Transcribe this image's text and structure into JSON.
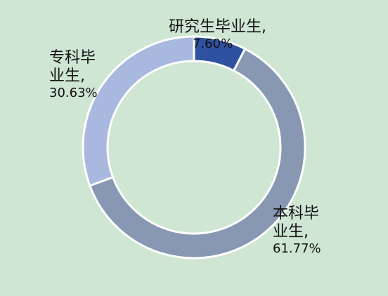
{
  "chart_data": {
    "type": "pie",
    "donut": true,
    "slices": [
      {
        "name": "研究生毕业生",
        "value": 7.6,
        "label_line1": "研究生毕业生,",
        "label_pct": "7.60%",
        "color": "#2f52a0"
      },
      {
        "name": "本科毕业生",
        "value": 61.77,
        "label_line1": "本科毕",
        "label_line2": "业生,",
        "label_pct": "61.77%",
        "color": "#8898b3"
      },
      {
        "name": "专科毕业生",
        "value": 30.63,
        "label_line1": "专科毕",
        "label_line2": "业生,",
        "label_pct": "30.63%",
        "color": "#a8b8de"
      }
    ],
    "legend": "none"
  },
  "colors": {
    "background": "#cfe6d3",
    "separator": "#ffffff"
  }
}
